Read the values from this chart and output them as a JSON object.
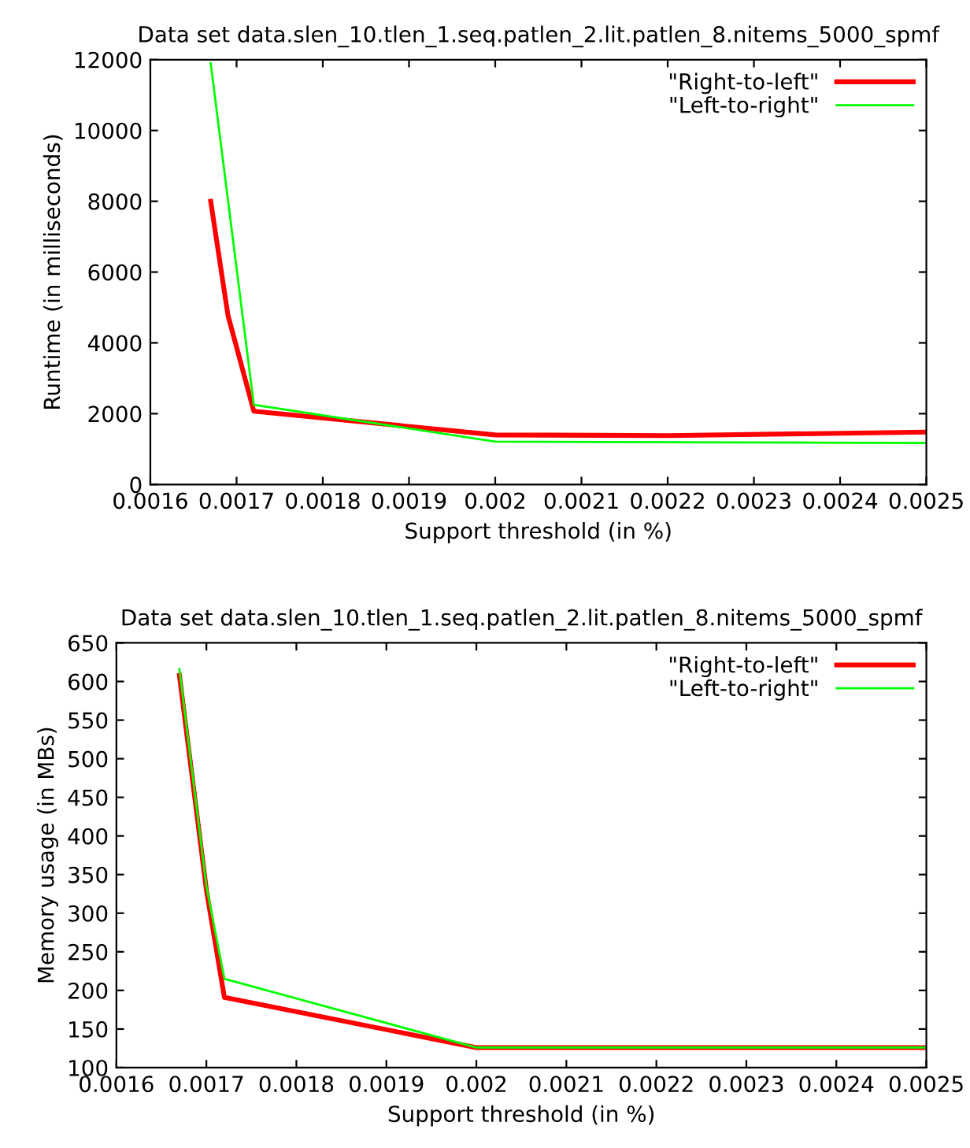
{
  "chart_data": [
    {
      "type": "line",
      "title": "Data set data.slen_10.tlen_1.seq.patlen_2.lit.patlen_8.nitems_5000_spmf",
      "xlabel": "Support threshold (in %)",
      "ylabel": "Runtime (in milliseconds)",
      "xlim": [
        0.0016,
        0.0025
      ],
      "xticks": [
        0.0016,
        0.0017,
        0.0018,
        0.0019,
        0.002,
        0.0021,
        0.0022,
        0.0023,
        0.0024,
        0.0025
      ],
      "ylim": [
        0,
        12000
      ],
      "yticks": [
        0,
        2000,
        4000,
        6000,
        8000,
        10000,
        12000
      ],
      "grid": false,
      "legend": "top right",
      "series": [
        {
          "name": "\"Right-to-left\"",
          "color": "#ff0000",
          "x": [
            0.00167,
            0.00169,
            0.00172,
            0.002,
            0.0022,
            0.0025
          ],
          "values": [
            8000,
            4780,
            2070,
            1400,
            1380,
            1480
          ]
        },
        {
          "name": "\"Left-to-right\"",
          "color": "#00ff00",
          "x": [
            0.00167,
            0.00172,
            0.002,
            0.0025
          ],
          "values": [
            11900,
            2250,
            1210,
            1170
          ]
        }
      ]
    },
    {
      "type": "line",
      "title": "Data set data.slen_10.tlen_1.seq.patlen_2.lit.patlen_8.nitems_5000_spmf",
      "xlabel": "Support threshold (in %)",
      "ylabel": "Memory usage (in MBs)",
      "xlim": [
        0.0016,
        0.0025
      ],
      "xticks": [
        0.0016,
        0.0017,
        0.0018,
        0.0019,
        0.002,
        0.0021,
        0.0022,
        0.0023,
        0.0024,
        0.0025
      ],
      "ylim": [
        100,
        650
      ],
      "yticks": [
        100,
        150,
        200,
        250,
        300,
        350,
        400,
        450,
        500,
        550,
        600,
        650
      ],
      "grid": false,
      "legend": "top right",
      "series": [
        {
          "name": "\"Right-to-left\"",
          "color": "#ff0000",
          "x": [
            0.00167,
            0.0017,
            0.00172,
            0.002,
            0.0025
          ],
          "values": [
            608,
            330,
            191,
            126,
            126
          ]
        },
        {
          "name": "\"Left-to-right\"",
          "color": "#00ff00",
          "x": [
            0.00167,
            0.0017,
            0.00172,
            0.002,
            0.0025
          ],
          "values": [
            616,
            335,
            215,
            126,
            126
          ]
        }
      ]
    }
  ]
}
